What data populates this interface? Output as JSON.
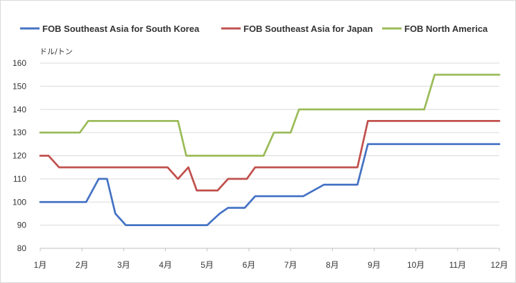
{
  "chart_data": {
    "type": "line",
    "title": "",
    "xlabel": "",
    "ylabel": "ドル/トン",
    "ylim": [
      80,
      160
    ],
    "y_ticks": [
      "80",
      "90",
      "100",
      "110",
      "120",
      "130",
      "140",
      "150",
      "160"
    ],
    "x_ticks": [
      "1月",
      "2月",
      "3月",
      "4月",
      "5月",
      "6月",
      "7月",
      "8月",
      "9月",
      "10月",
      "11月",
      "12月"
    ],
    "xlim": [
      1,
      12
    ],
    "grid": "horizontal",
    "legend": "top",
    "series": [
      {
        "name": "FOB Southeast Asia for South Korea",
        "color": "#4472c4",
        "points": [
          [
            1,
            100
          ],
          [
            2.1,
            100
          ],
          [
            2.4,
            110
          ],
          [
            2.6,
            110
          ],
          [
            2.8,
            95
          ],
          [
            3.05,
            90
          ],
          [
            5,
            90
          ],
          [
            5.3,
            95
          ],
          [
            5.5,
            97.5
          ],
          [
            5.9,
            97.5
          ],
          [
            6.15,
            102.5
          ],
          [
            7.3,
            102.5
          ],
          [
            7.8,
            107.5
          ],
          [
            8.6,
            107.5
          ],
          [
            8.85,
            125
          ],
          [
            12,
            125
          ]
        ]
      },
      {
        "name": "FOB Southeast Asia for Japan",
        "color": "#c0504d",
        "points": [
          [
            1,
            120
          ],
          [
            1.2,
            120
          ],
          [
            1.45,
            115
          ],
          [
            4.05,
            115
          ],
          [
            4.3,
            110
          ],
          [
            4.55,
            115
          ],
          [
            4.75,
            105
          ],
          [
            5.25,
            105
          ],
          [
            5.5,
            110
          ],
          [
            5.95,
            110
          ],
          [
            6.15,
            115
          ],
          [
            8.6,
            115
          ],
          [
            8.85,
            135
          ],
          [
            12,
            135
          ]
        ]
      },
      {
        "name": "FOB North America",
        "color": "#9bbb59",
        "points": [
          [
            1,
            130
          ],
          [
            1.95,
            130
          ],
          [
            2.15,
            135
          ],
          [
            4.3,
            135
          ],
          [
            4.5,
            120
          ],
          [
            6.35,
            120
          ],
          [
            6.6,
            130
          ],
          [
            7.0,
            130
          ],
          [
            7.2,
            140
          ],
          [
            10.2,
            140
          ],
          [
            10.45,
            155
          ],
          [
            12,
            155
          ]
        ]
      }
    ]
  }
}
